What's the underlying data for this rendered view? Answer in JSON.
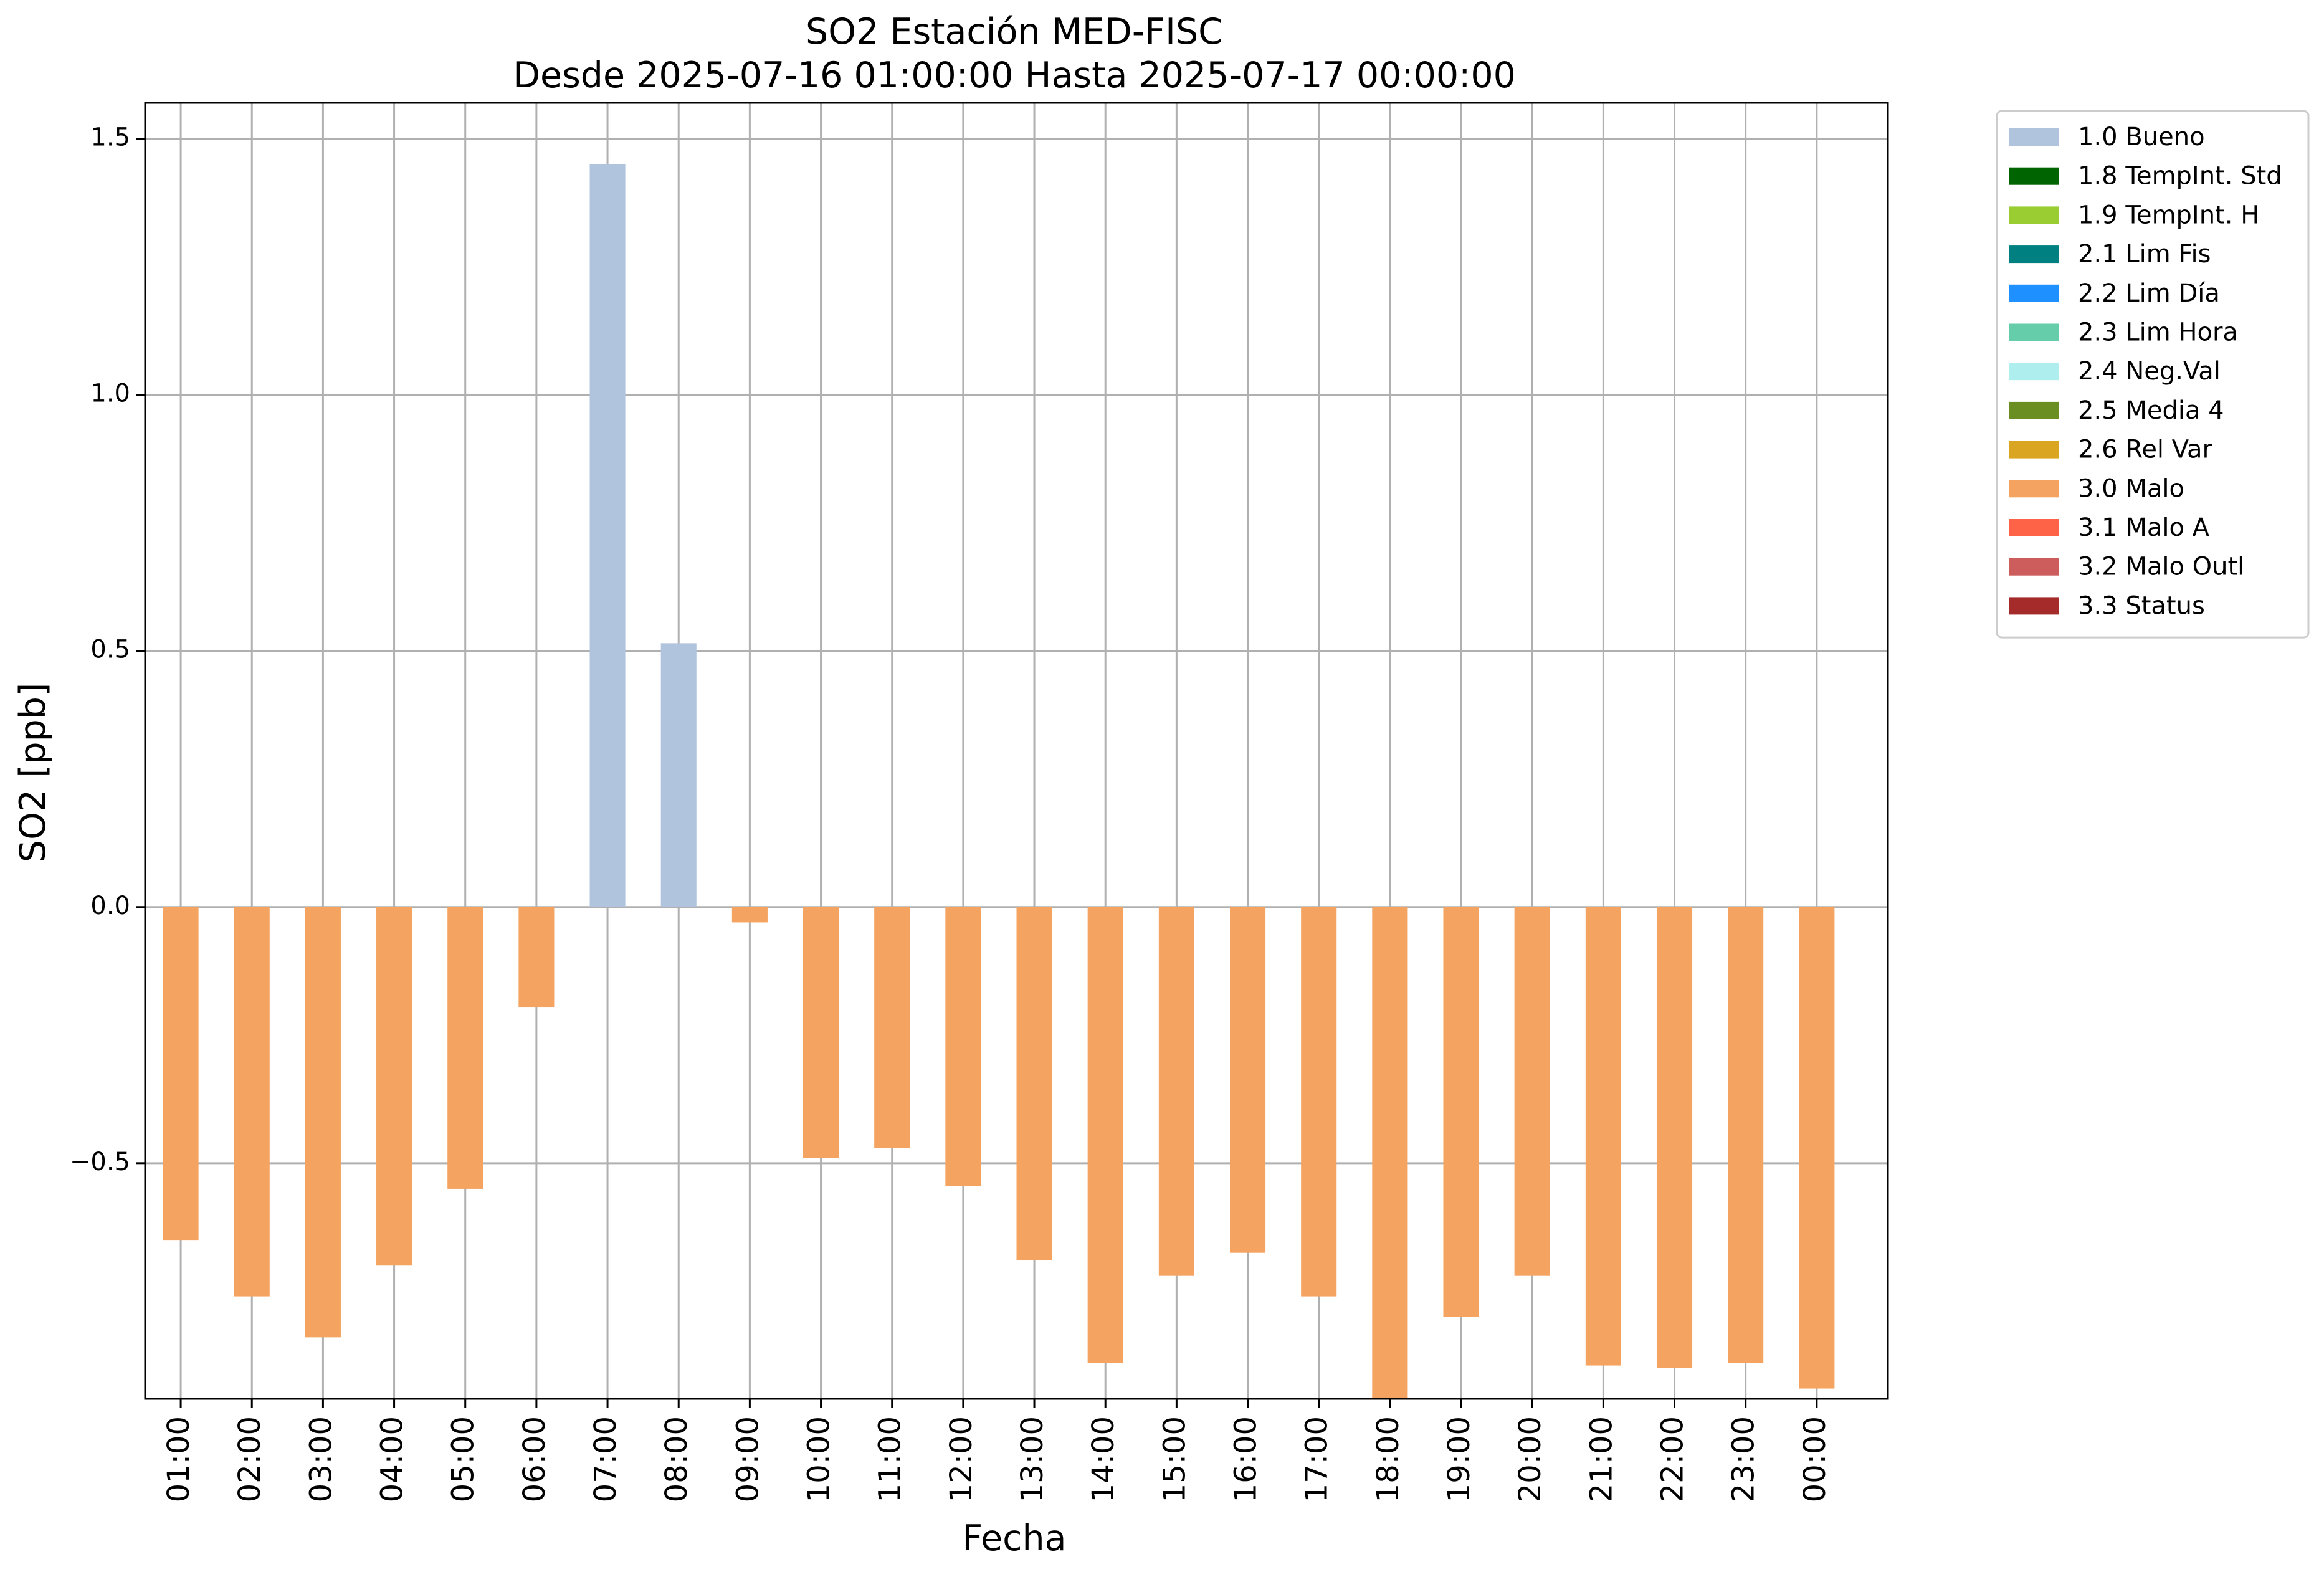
{
  "chart_data": {
    "type": "bar",
    "title": "SO2 Estación MED-FISC",
    "subtitle": "Desde 2025-07-16 01:00:00 Hasta 2025-07-17 00:00:00",
    "xlabel": "Fecha",
    "ylabel": "SO2 [ppb]",
    "ylim": [
      -0.96,
      1.57
    ],
    "yticks": [
      -0.5,
      0.0,
      0.5,
      1.0,
      1.5
    ],
    "ytick_labels": [
      "−0.5",
      "0.0",
      "0.5",
      "1.0",
      "1.5"
    ],
    "grid": true,
    "legend_position": "outside-top-right",
    "categories": [
      "01:00",
      "02:00",
      "03:00",
      "04:00",
      "05:00",
      "06:00",
      "07:00",
      "08:00",
      "09:00",
      "10:00",
      "11:00",
      "12:00",
      "13:00",
      "14:00",
      "15:00",
      "16:00",
      "17:00",
      "18:00",
      "19:00",
      "20:00",
      "21:00",
      "22:00",
      "23:00",
      "00:00"
    ],
    "values": [
      -0.65,
      -0.76,
      -0.84,
      -0.7,
      -0.55,
      -0.195,
      1.45,
      0.515,
      -0.03,
      -0.49,
      -0.47,
      -0.545,
      -0.69,
      -0.89,
      -0.72,
      -0.675,
      -0.76,
      -0.96,
      -0.8,
      -0.72,
      -0.895,
      -0.9,
      -0.89,
      -0.94
    ],
    "flags": [
      "3.0 Malo",
      "3.0 Malo",
      "3.0 Malo",
      "3.0 Malo",
      "3.0 Malo",
      "3.0 Malo",
      "1.0 Bueno",
      "1.0 Bueno",
      "3.0 Malo",
      "3.0 Malo",
      "3.0 Malo",
      "3.0 Malo",
      "3.0 Malo",
      "3.0 Malo",
      "3.0 Malo",
      "3.0 Malo",
      "3.0 Malo",
      "3.0 Malo",
      "3.0 Malo",
      "3.0 Malo",
      "3.0 Malo",
      "3.0 Malo",
      "3.0 Malo",
      "3.0 Malo"
    ],
    "legend": [
      {
        "label": "1.0 Bueno",
        "color": "#b0c4de"
      },
      {
        "label": "1.8 TempInt. Std",
        "color": "#006400"
      },
      {
        "label": "1.9 TempInt. H",
        "color": "#9acd32"
      },
      {
        "label": "2.1 Lim Fis",
        "color": "#008080"
      },
      {
        "label": "2.2 Lim Día",
        "color": "#1e90ff"
      },
      {
        "label": "2.3 Lim Hora",
        "color": "#66cdaa"
      },
      {
        "label": "2.4 Neg.Val",
        "color": "#afeeee"
      },
      {
        "label": "2.5 Media 4",
        "color": "#6b8e23"
      },
      {
        "label": "2.6 Rel Var",
        "color": "#daa520"
      },
      {
        "label": "3.0 Malo",
        "color": "#f4a460"
      },
      {
        "label": "3.1 Malo A",
        "color": "#ff6347"
      },
      {
        "label": "3.2 Malo Outl",
        "color": "#cd5c5c"
      },
      {
        "label": "3.3 Status",
        "color": "#a52a2a"
      }
    ]
  }
}
